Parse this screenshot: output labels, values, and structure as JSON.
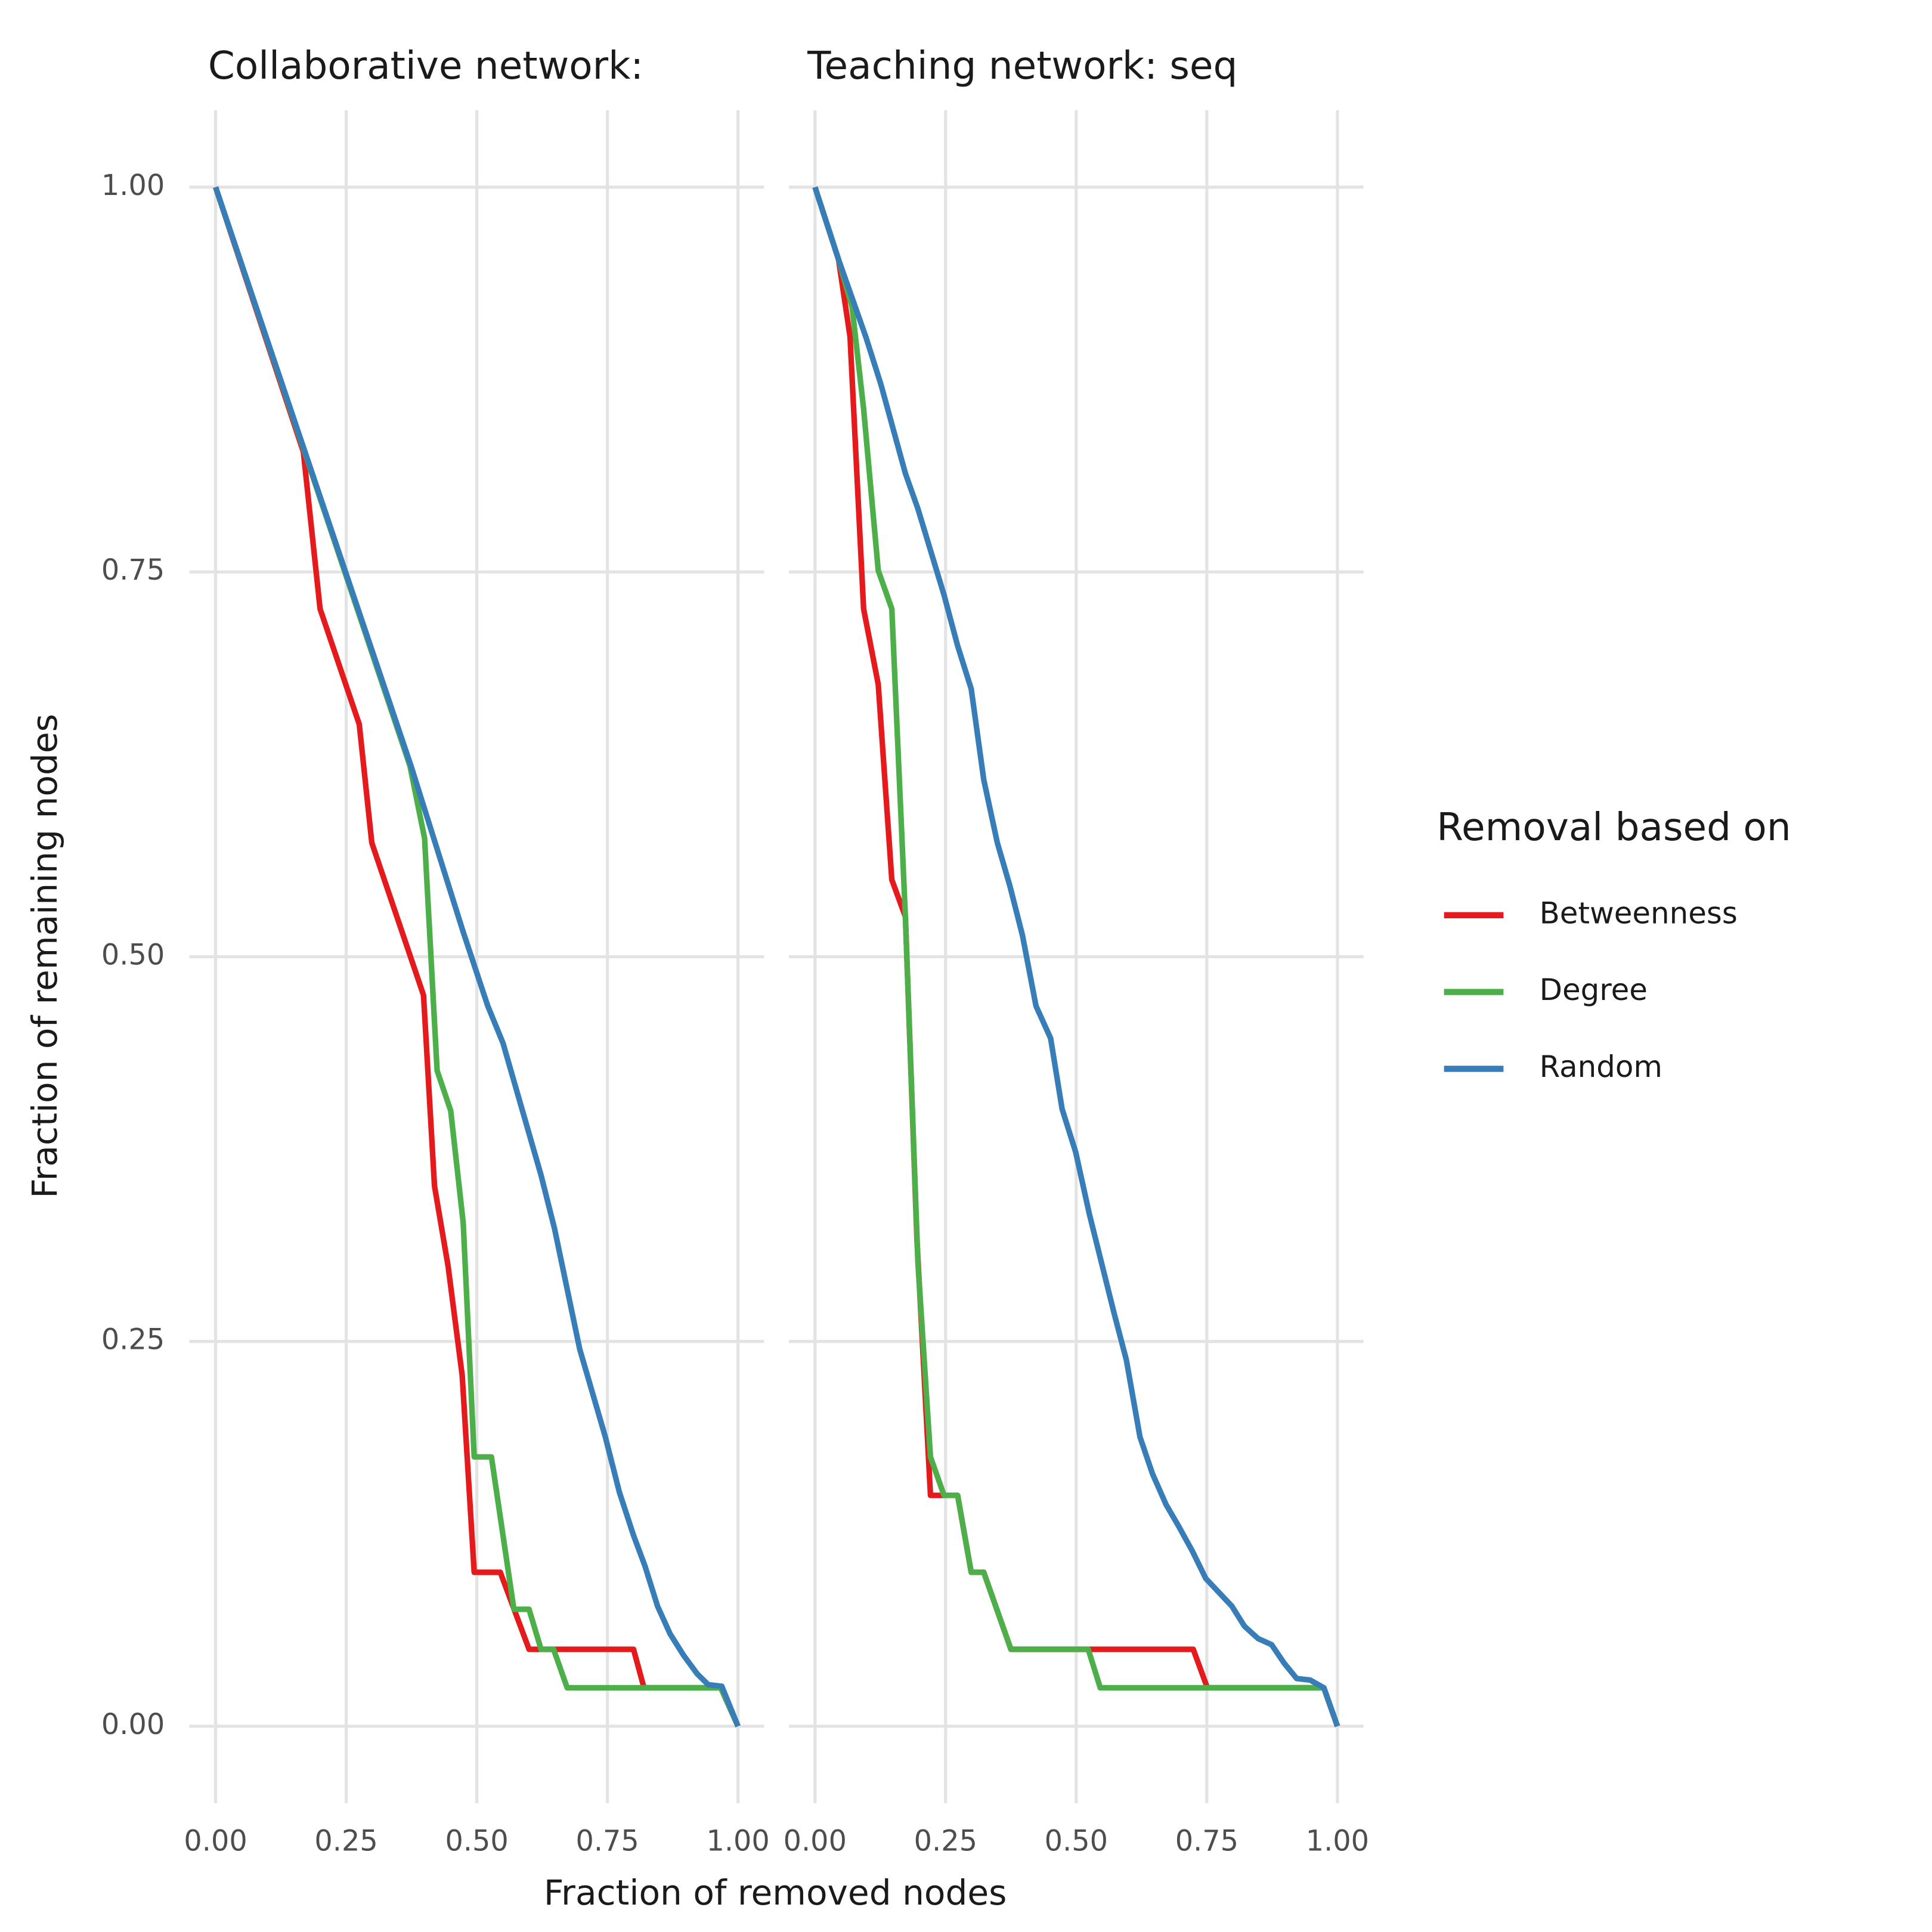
{
  "x_label": "Fraction of removed nodes",
  "y_label": "Fraction of remaining nodes",
  "legend_title": "Removal based on",
  "legend_position": "right",
  "chart_data": [
    {
      "type": "line",
      "title": "Collaborative network:",
      "grid": true,
      "xlim": [
        -0.05,
        1.05
      ],
      "ylim": [
        -0.05,
        1.05
      ],
      "xticks": [
        {
          "value": 0,
          "label": "0.00"
        },
        {
          "value": 0.25,
          "label": "0.25"
        },
        {
          "value": 0.5,
          "label": "0.50"
        },
        {
          "value": 0.75,
          "label": "0.75"
        },
        {
          "value": 1,
          "label": "1.00"
        }
      ],
      "yticks": [
        {
          "value": 0,
          "label": "0.00"
        },
        {
          "value": 0.25,
          "label": "0.25"
        },
        {
          "value": 0.5,
          "label": "0.50"
        },
        {
          "value": 0.75,
          "label": "0.75"
        },
        {
          "value": 1,
          "label": "1.00"
        }
      ],
      "series": [
        {
          "name": "Betweenness",
          "color": "#e41a1c",
          "x": [
            0,
            0.168,
            0.2,
            0.275,
            0.299,
            0.398,
            0.419,
            0.445,
            0.472,
            0.495,
            0.545,
            0.6,
            0.8,
            0.82,
            0.967,
            1
          ],
          "values": [
            1,
            0.828,
            0.726,
            0.651,
            0.574,
            0.475,
            0.351,
            0.299,
            0.228,
            0.1,
            0.1,
            0.05,
            0.05,
            0.025,
            0.025,
            0
          ]
        },
        {
          "name": "Degree",
          "color": "#4daf4a",
          "x": [
            0,
            0.372,
            0.4,
            0.424,
            0.45,
            0.474,
            0.495,
            0.528,
            0.571,
            0.6,
            0.623,
            0.647,
            0.673,
            0.967,
            1
          ],
          "values": [
            1,
            0.624,
            0.577,
            0.426,
            0.4,
            0.327,
            0.175,
            0.175,
            0.076,
            0.076,
            0.05,
            0.05,
            0.025,
            0.025,
            0
          ]
        },
        {
          "name": "Random",
          "color": "#377eb8",
          "x": [
            0,
            0.374,
            0.474,
            0.521,
            0.55,
            0.623,
            0.649,
            0.697,
            0.746,
            0.773,
            0.8,
            0.822,
            0.846,
            0.87,
            0.896,
            0.922,
            0.943,
            0.969,
            1
          ],
          "values": [
            1,
            0.624,
            0.516,
            0.468,
            0.444,
            0.358,
            0.323,
            0.245,
            0.188,
            0.152,
            0.124,
            0.104,
            0.078,
            0.06,
            0.046,
            0.034,
            0.027,
            0.026,
            0
          ]
        }
      ]
    },
    {
      "type": "line",
      "title": "Teaching network: seq",
      "grid": true,
      "xlim": [
        -0.05,
        1.05
      ],
      "ylim": [
        -0.05,
        1.05
      ],
      "xticks": [
        {
          "value": 0,
          "label": "0.00"
        },
        {
          "value": 0.25,
          "label": "0.25"
        },
        {
          "value": 0.5,
          "label": "0.50"
        },
        {
          "value": 0.75,
          "label": "0.75"
        },
        {
          "value": 1,
          "label": "1.00"
        }
      ],
      "yticks": [
        0,
        0.25,
        0.5,
        0.75,
        1
      ],
      "series": [
        {
          "name": "Betweenness",
          "color": "#e41a1c",
          "x": [
            0,
            0.045,
            0.067,
            0.093,
            0.121,
            0.147,
            0.173,
            0.195,
            0.221,
            0.273,
            0.299,
            0.323,
            0.375,
            0.724,
            0.751,
            0.974,
            1
          ],
          "values": [
            1,
            0.953,
            0.903,
            0.726,
            0.677,
            0.55,
            0.526,
            0.317,
            0.15,
            0.15,
            0.1,
            0.1,
            0.05,
            0.05,
            0.025,
            0.025,
            0
          ]
        },
        {
          "name": "Degree",
          "color": "#4daf4a",
          "x": [
            0,
            0.045,
            0.071,
            0.093,
            0.121,
            0.147,
            0.173,
            0.197,
            0.221,
            0.247,
            0.273,
            0.299,
            0.323,
            0.375,
            0.523,
            0.546,
            0.974,
            1
          ],
          "values": [
            1,
            0.953,
            0.922,
            0.856,
            0.751,
            0.726,
            0.526,
            0.301,
            0.175,
            0.15,
            0.15,
            0.1,
            0.1,
            0.05,
            0.05,
            0.025,
            0.025,
            0
          ]
        },
        {
          "name": "Random",
          "color": "#377eb8",
          "x": [
            0,
            0.045,
            0.097,
            0.126,
            0.173,
            0.197,
            0.247,
            0.273,
            0.299,
            0.323,
            0.349,
            0.373,
            0.397,
            0.423,
            0.451,
            0.473,
            0.499,
            0.525,
            0.572,
            0.596,
            0.622,
            0.646,
            0.672,
            0.696,
            0.722,
            0.748,
            0.798,
            0.822,
            0.848,
            0.874,
            0.898,
            0.922,
            0.948,
            0.974,
            1
          ],
          "values": [
            1,
            0.953,
            0.903,
            0.872,
            0.814,
            0.791,
            0.735,
            0.702,
            0.674,
            0.615,
            0.574,
            0.546,
            0.514,
            0.468,
            0.447,
            0.401,
            0.373,
            0.333,
            0.269,
            0.238,
            0.188,
            0.164,
            0.144,
            0.13,
            0.114,
            0.096,
            0.078,
            0.065,
            0.057,
            0.053,
            0.041,
            0.031,
            0.03,
            0.025,
            0
          ]
        }
      ]
    }
  ]
}
